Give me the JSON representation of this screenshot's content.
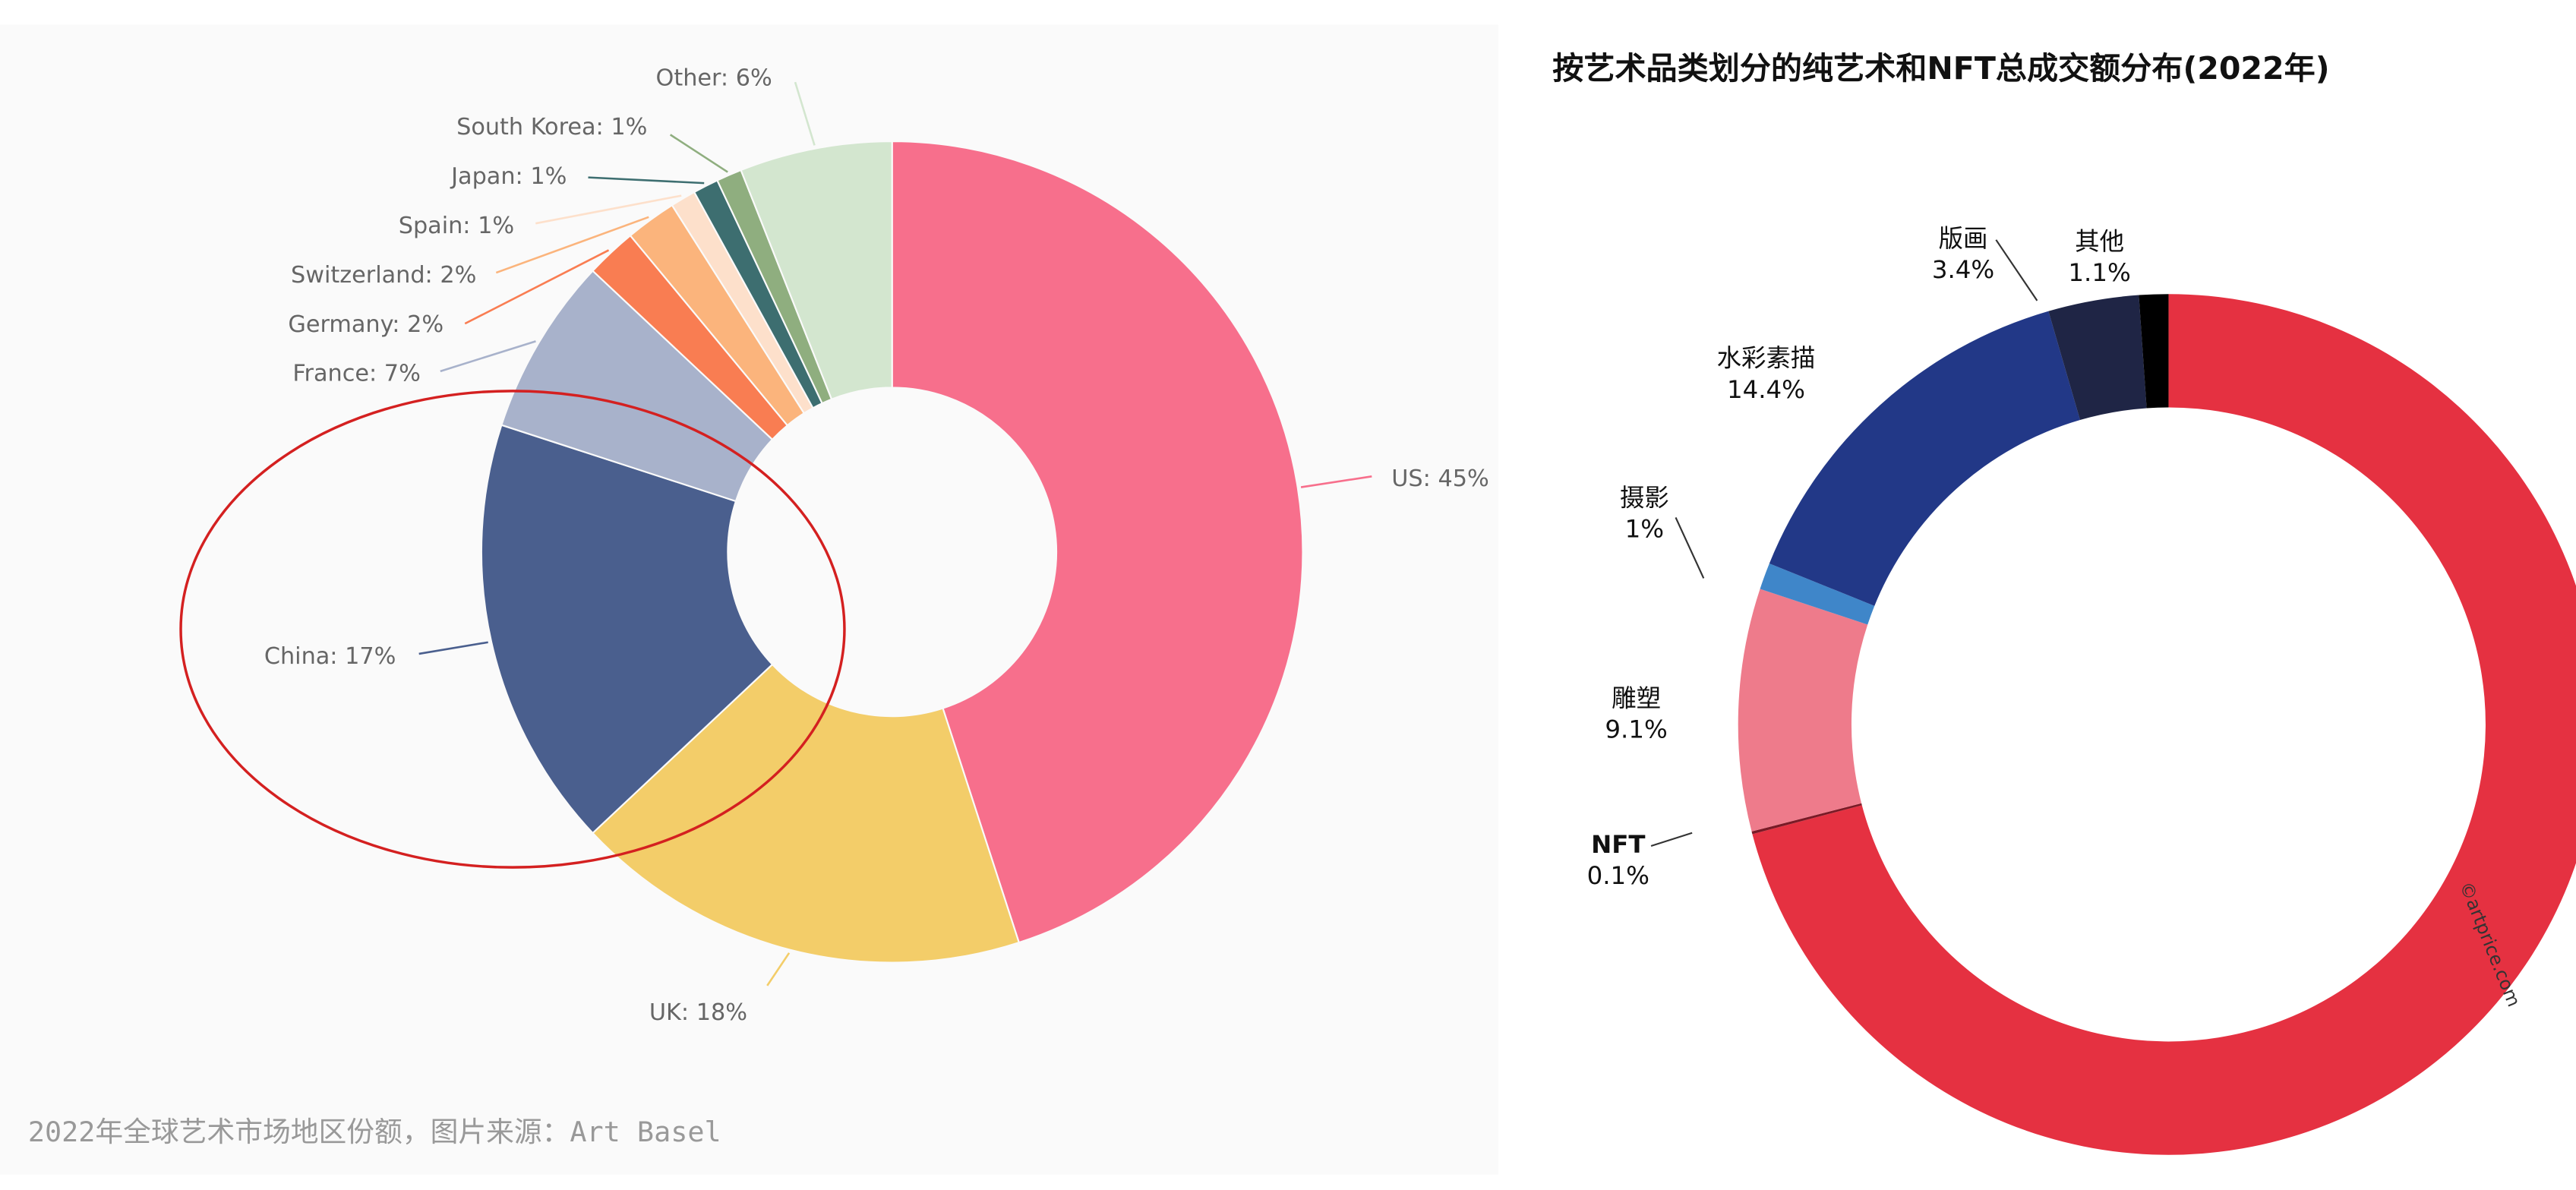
{
  "chart_data": [
    {
      "type": "donut",
      "values": [
        45,
        18,
        17,
        7,
        2,
        2,
        1,
        1,
        1,
        6
      ],
      "value_labels": [
        "US: 45%",
        "UK: 18%",
        "China: 17%",
        "France: 7%",
        "Germany: 2%",
        "Switzerland: 2%",
        "Spain: 1%",
        "Japan: 1%",
        "South Korea: 1%",
        "Other: 6%"
      ],
      "colors": [
        "#f76f8c",
        "#f3cd69",
        "#4a5f8e",
        "#a8b2cb",
        "#f97d52",
        "#fbb47c",
        "#fde0cb",
        "#3d6e70",
        "#8fae7f",
        "#d3e6cf"
      ],
      "caption": "2022年全球艺术市场地区份额，图片来源：Art Basel"
    },
    {
      "type": "donut",
      "title": "按艺术品类划分的纯艺术和NFT总成交额分布(2022年)",
      "categories": [
        null,
        "NFT",
        "雕塑",
        "摄影",
        "水彩素描",
        "版画",
        "其他"
      ],
      "values": [
        70.9,
        0.1,
        9.1,
        1,
        14.4,
        3.4,
        1.1
      ],
      "value_labels": [
        null,
        "0.1%",
        "9.1%",
        "1%",
        "14.4%",
        "3.4%",
        "1.1%"
      ],
      "colors": [
        "#e53141",
        "#7a1a26",
        "#ee7b8b",
        "#3f86c9",
        "#223887",
        "#1f2545",
        "#000000"
      ],
      "watermark": "©artprice.com"
    }
  ]
}
